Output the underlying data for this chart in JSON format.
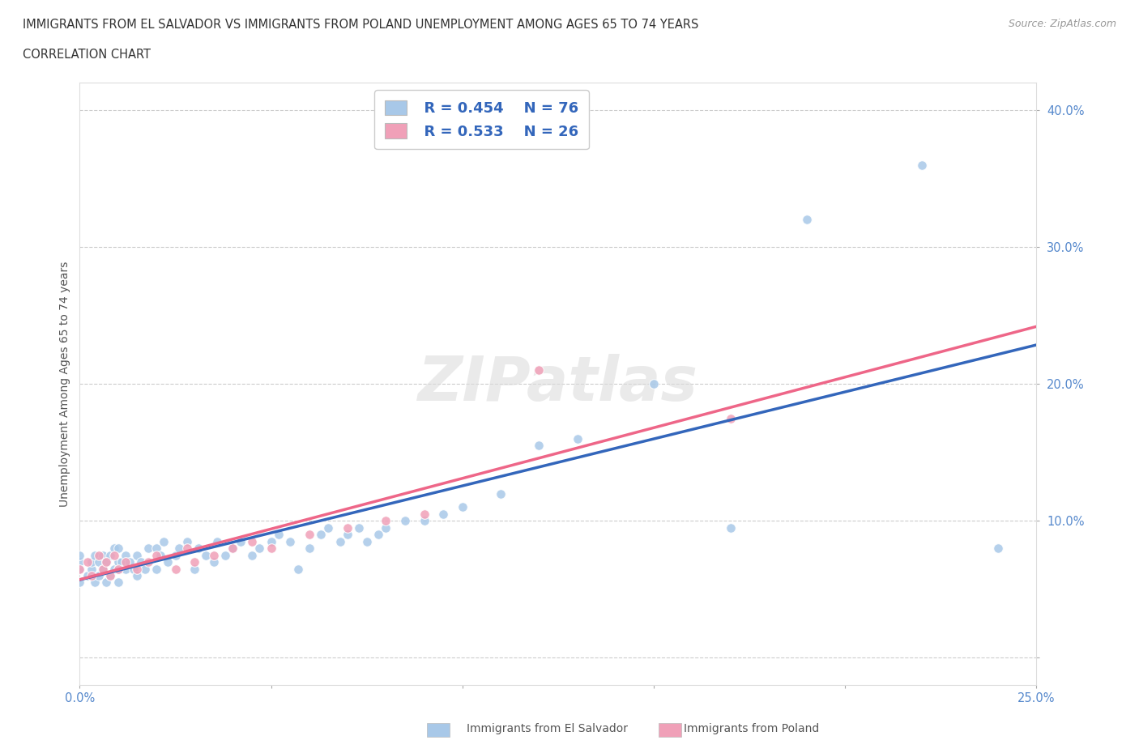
{
  "title_line1": "IMMIGRANTS FROM EL SALVADOR VS IMMIGRANTS FROM POLAND UNEMPLOYMENT AMONG AGES 65 TO 74 YEARS",
  "title_line2": "CORRELATION CHART",
  "source_text": "Source: ZipAtlas.com",
  "ylabel": "Unemployment Among Ages 65 to 74 years",
  "xlim": [
    0.0,
    0.25
  ],
  "ylim": [
    -0.02,
    0.42
  ],
  "xticks": [
    0.0,
    0.05,
    0.1,
    0.15,
    0.2,
    0.25
  ],
  "yticks": [
    0.0,
    0.1,
    0.2,
    0.3,
    0.4
  ],
  "xtick_labels": [
    "0.0%",
    "",
    "",
    "",
    "",
    "25.0%"
  ],
  "ytick_labels": [
    "",
    "10.0%",
    "20.0%",
    "30.0%",
    "40.0%"
  ],
  "color_salvador": "#A8C8E8",
  "color_poland": "#F0A0B8",
  "line_color_salvador": "#3366BB",
  "line_color_poland": "#EE6688",
  "legend_r_salvador": "R = 0.454",
  "legend_n_salvador": "N = 76",
  "legend_r_poland": "R = 0.533",
  "legend_n_poland": "N = 26",
  "legend_label_salvador": "Immigrants from El Salvador",
  "legend_label_poland": "Immigrants from Poland",
  "watermark": "ZIPatlas",
  "background_color": "#FFFFFF",
  "grid_color": "#CCCCCC",
  "tick_label_color": "#5588CC",
  "salvador_x": [
    0.0,
    0.0,
    0.0,
    0.0,
    0.002,
    0.003,
    0.003,
    0.004,
    0.004,
    0.005,
    0.005,
    0.006,
    0.006,
    0.007,
    0.007,
    0.008,
    0.008,
    0.009,
    0.009,
    0.01,
    0.01,
    0.01,
    0.01,
    0.011,
    0.012,
    0.012,
    0.013,
    0.014,
    0.015,
    0.015,
    0.016,
    0.017,
    0.018,
    0.02,
    0.02,
    0.021,
    0.022,
    0.023,
    0.025,
    0.026,
    0.028,
    0.03,
    0.031,
    0.033,
    0.035,
    0.036,
    0.038,
    0.04,
    0.042,
    0.045,
    0.047,
    0.05,
    0.052,
    0.055,
    0.057,
    0.06,
    0.063,
    0.065,
    0.068,
    0.07,
    0.073,
    0.075,
    0.078,
    0.08,
    0.085,
    0.09,
    0.095,
    0.1,
    0.11,
    0.12,
    0.13,
    0.15,
    0.17,
    0.19,
    0.22,
    0.24
  ],
  "salvador_y": [
    0.055,
    0.065,
    0.07,
    0.075,
    0.06,
    0.065,
    0.07,
    0.055,
    0.075,
    0.06,
    0.07,
    0.065,
    0.075,
    0.055,
    0.07,
    0.06,
    0.075,
    0.065,
    0.08,
    0.055,
    0.065,
    0.07,
    0.08,
    0.07,
    0.065,
    0.075,
    0.07,
    0.065,
    0.06,
    0.075,
    0.07,
    0.065,
    0.08,
    0.065,
    0.08,
    0.075,
    0.085,
    0.07,
    0.075,
    0.08,
    0.085,
    0.065,
    0.08,
    0.075,
    0.07,
    0.085,
    0.075,
    0.08,
    0.085,
    0.075,
    0.08,
    0.085,
    0.09,
    0.085,
    0.065,
    0.08,
    0.09,
    0.095,
    0.085,
    0.09,
    0.095,
    0.085,
    0.09,
    0.095,
    0.1,
    0.1,
    0.105,
    0.11,
    0.12,
    0.155,
    0.16,
    0.2,
    0.095,
    0.32,
    0.36,
    0.08
  ],
  "poland_x": [
    0.0,
    0.002,
    0.003,
    0.005,
    0.006,
    0.007,
    0.008,
    0.009,
    0.01,
    0.012,
    0.015,
    0.018,
    0.02,
    0.025,
    0.028,
    0.03,
    0.035,
    0.04,
    0.045,
    0.05,
    0.06,
    0.07,
    0.08,
    0.09,
    0.12,
    0.17
  ],
  "poland_y": [
    0.065,
    0.07,
    0.06,
    0.075,
    0.065,
    0.07,
    0.06,
    0.075,
    0.065,
    0.07,
    0.065,
    0.07,
    0.075,
    0.065,
    0.08,
    0.07,
    0.075,
    0.08,
    0.085,
    0.08,
    0.09,
    0.095,
    0.1,
    0.105,
    0.21,
    0.175
  ]
}
